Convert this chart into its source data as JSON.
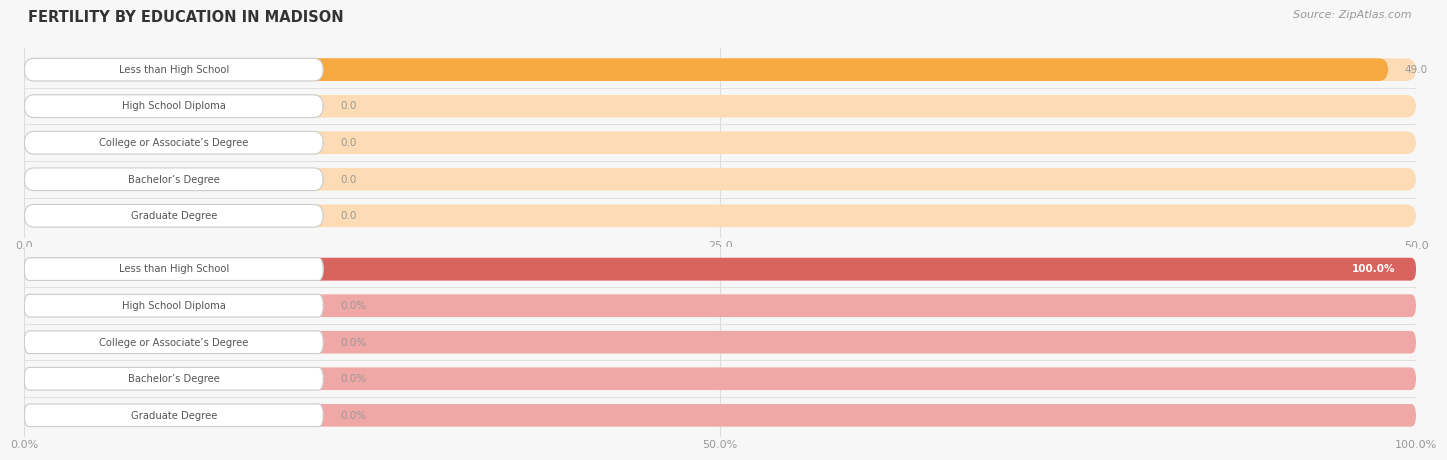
{
  "title": "FERTILITY BY EDUCATION IN MADISON",
  "source_text": "Source: ZipAtlas.com",
  "categories": [
    "Less than High School",
    "High School Diploma",
    "College or Associate’s Degree",
    "Bachelor’s Degree",
    "Graduate Degree"
  ],
  "chart1": {
    "values": [
      49.0,
      0.0,
      0.0,
      0.0,
      0.0
    ],
    "max_value": 50.0,
    "tick_values": [
      0.0,
      25.0,
      50.0
    ],
    "tick_labels": [
      "0.0",
      "25.0",
      "50.0"
    ],
    "bar_color_full": "#F5A940",
    "bar_color_empty": "#FDDCB5",
    "value_labels": [
      "49.0",
      "0.0",
      "0.0",
      "0.0",
      "0.0"
    ],
    "full_bar_value_color": "#ffffff",
    "zero_value_color": "#aaaaaa"
  },
  "chart2": {
    "values": [
      100.0,
      0.0,
      0.0,
      0.0,
      0.0
    ],
    "max_value": 100.0,
    "tick_values": [
      0.0,
      50.0,
      100.0
    ],
    "tick_labels": [
      "0.0%",
      "50.0%",
      "100.0%"
    ],
    "bar_color_full": "#D9645F",
    "bar_color_empty": "#EFA8A5",
    "value_labels": [
      "100.0%",
      "0.0%",
      "0.0%",
      "0.0%",
      "0.0%"
    ],
    "full_bar_value_color": "#ffffff",
    "zero_value_color": "#aaaaaa"
  },
  "background_color": "#f7f7f7",
  "label_box_color": "#ffffff",
  "label_text_color": "#555555",
  "title_color": "#333333",
  "source_color": "#999999",
  "tick_label_color": "#999999",
  "grid_color": "#dddddd",
  "separator_color": "#e0e0e0"
}
